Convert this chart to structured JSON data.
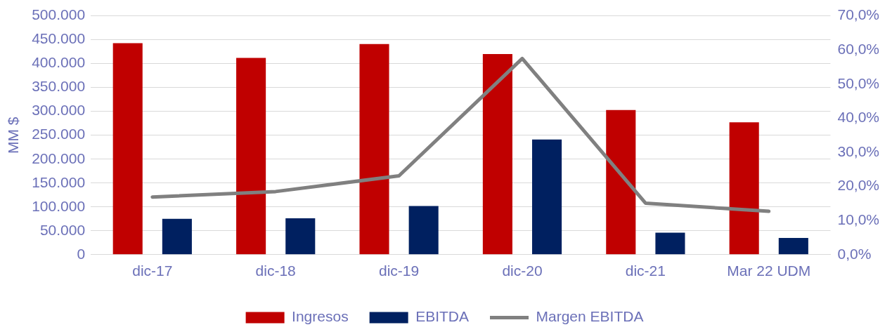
{
  "chart_data": {
    "type": "bar",
    "ylabel": "MM $",
    "categories": [
      "dic-17",
      "dic-18",
      "dic-19",
      "dic-20",
      "dic-21",
      "Mar 22 UDM"
    ],
    "series": [
      {
        "name": "Ingresos",
        "color": "#c00000",
        "values": [
          443000,
          412000,
          441000,
          420000,
          303000,
          277000
        ]
      },
      {
        "name": "EBITDA",
        "color": "#002060",
        "values": [
          75000,
          76000,
          102000,
          241000,
          46000,
          35000
        ]
      },
      {
        "name": "Margen EBITDA",
        "type": "line",
        "axis": "y2",
        "color": "#808080",
        "values": [
          16.9,
          18.5,
          23.1,
          57.5,
          15.1,
          12.7
        ]
      }
    ],
    "ylim": [
      0,
      500000
    ],
    "yticks": [
      {
        "value": 0,
        "label": "0"
      },
      {
        "value": 50000,
        "label": "50.000"
      },
      {
        "value": 100000,
        "label": "100.000"
      },
      {
        "value": 150000,
        "label": "150.000"
      },
      {
        "value": 200000,
        "label": "200.000"
      },
      {
        "value": 250000,
        "label": "250.000"
      },
      {
        "value": 300000,
        "label": "300.000"
      },
      {
        "value": 350000,
        "label": "350.000"
      },
      {
        "value": 400000,
        "label": "400.000"
      },
      {
        "value": 450000,
        "label": "450.000"
      },
      {
        "value": 500000,
        "label": "500.000"
      }
    ],
    "y2lim": [
      0,
      70
    ],
    "y2ticks": [
      {
        "value": 0,
        "label": "0,0%"
      },
      {
        "value": 10,
        "label": "10,0%"
      },
      {
        "value": 20,
        "label": "20,0%"
      },
      {
        "value": 30,
        "label": "30,0%"
      },
      {
        "value": 40,
        "label": "40,0%"
      },
      {
        "value": 50,
        "label": "50,0%"
      },
      {
        "value": 60,
        "label": "60,0%"
      },
      {
        "value": 70,
        "label": "70,0%"
      }
    ],
    "grid": "y",
    "legend": "bottom",
    "marker": "none"
  }
}
